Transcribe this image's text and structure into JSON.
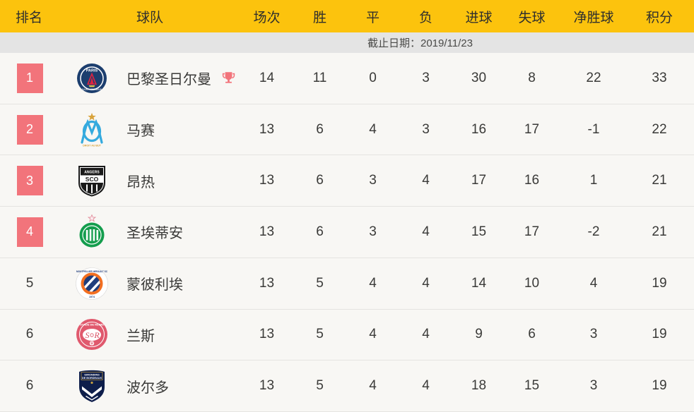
{
  "colors": {
    "header_bg": "#fcc30d",
    "highlight": "#f2747b",
    "row_bg": "#f8f7f4",
    "date_bar_bg": "#e4e4e4"
  },
  "header": {
    "columns": [
      "排名",
      "球队",
      "场次",
      "胜",
      "平",
      "负",
      "进球",
      "失球",
      "净胜球",
      "积分"
    ]
  },
  "date_bar": {
    "label": "截止日期：2019/11/23"
  },
  "icons": {
    "trophy": "champion-trophy-icon"
  },
  "standings": {
    "rows": [
      {
        "rank": "1",
        "highlight": true,
        "team": "巴黎圣日尔曼",
        "logo": "psg",
        "trophy": true,
        "played": "14",
        "win": "11",
        "draw": "0",
        "loss": "3",
        "goals_for": "30",
        "goals_against": "8",
        "goal_diff": "22",
        "points": "33"
      },
      {
        "rank": "2",
        "highlight": true,
        "team": "马赛",
        "logo": "marseille",
        "trophy": false,
        "played": "13",
        "win": "6",
        "draw": "4",
        "loss": "3",
        "goals_for": "16",
        "goals_against": "17",
        "goal_diff": "-1",
        "points": "22"
      },
      {
        "rank": "3",
        "highlight": true,
        "team": "昂热",
        "logo": "angers",
        "trophy": false,
        "played": "13",
        "win": "6",
        "draw": "3",
        "loss": "4",
        "goals_for": "17",
        "goals_against": "16",
        "goal_diff": "1",
        "points": "21"
      },
      {
        "rank": "4",
        "highlight": true,
        "team": "圣埃蒂安",
        "logo": "saint-etienne",
        "trophy": false,
        "played": "13",
        "win": "6",
        "draw": "3",
        "loss": "4",
        "goals_for": "15",
        "goals_against": "17",
        "goal_diff": "-2",
        "points": "21"
      },
      {
        "rank": "5",
        "highlight": false,
        "team": "蒙彼利埃",
        "logo": "montpellier",
        "trophy": false,
        "played": "13",
        "win": "5",
        "draw": "4",
        "loss": "4",
        "goals_for": "14",
        "goals_against": "10",
        "goal_diff": "4",
        "points": "19"
      },
      {
        "rank": "6",
        "highlight": false,
        "team": "兰斯",
        "logo": "reims",
        "trophy": false,
        "played": "13",
        "win": "5",
        "draw": "4",
        "loss": "4",
        "goals_for": "9",
        "goals_against": "6",
        "goal_diff": "3",
        "points": "19"
      },
      {
        "rank": "6",
        "highlight": false,
        "team": "波尔多",
        "logo": "bordeaux",
        "trophy": false,
        "played": "13",
        "win": "5",
        "draw": "4",
        "loss": "4",
        "goals_for": "18",
        "goals_against": "15",
        "goal_diff": "3",
        "points": "19"
      }
    ]
  }
}
